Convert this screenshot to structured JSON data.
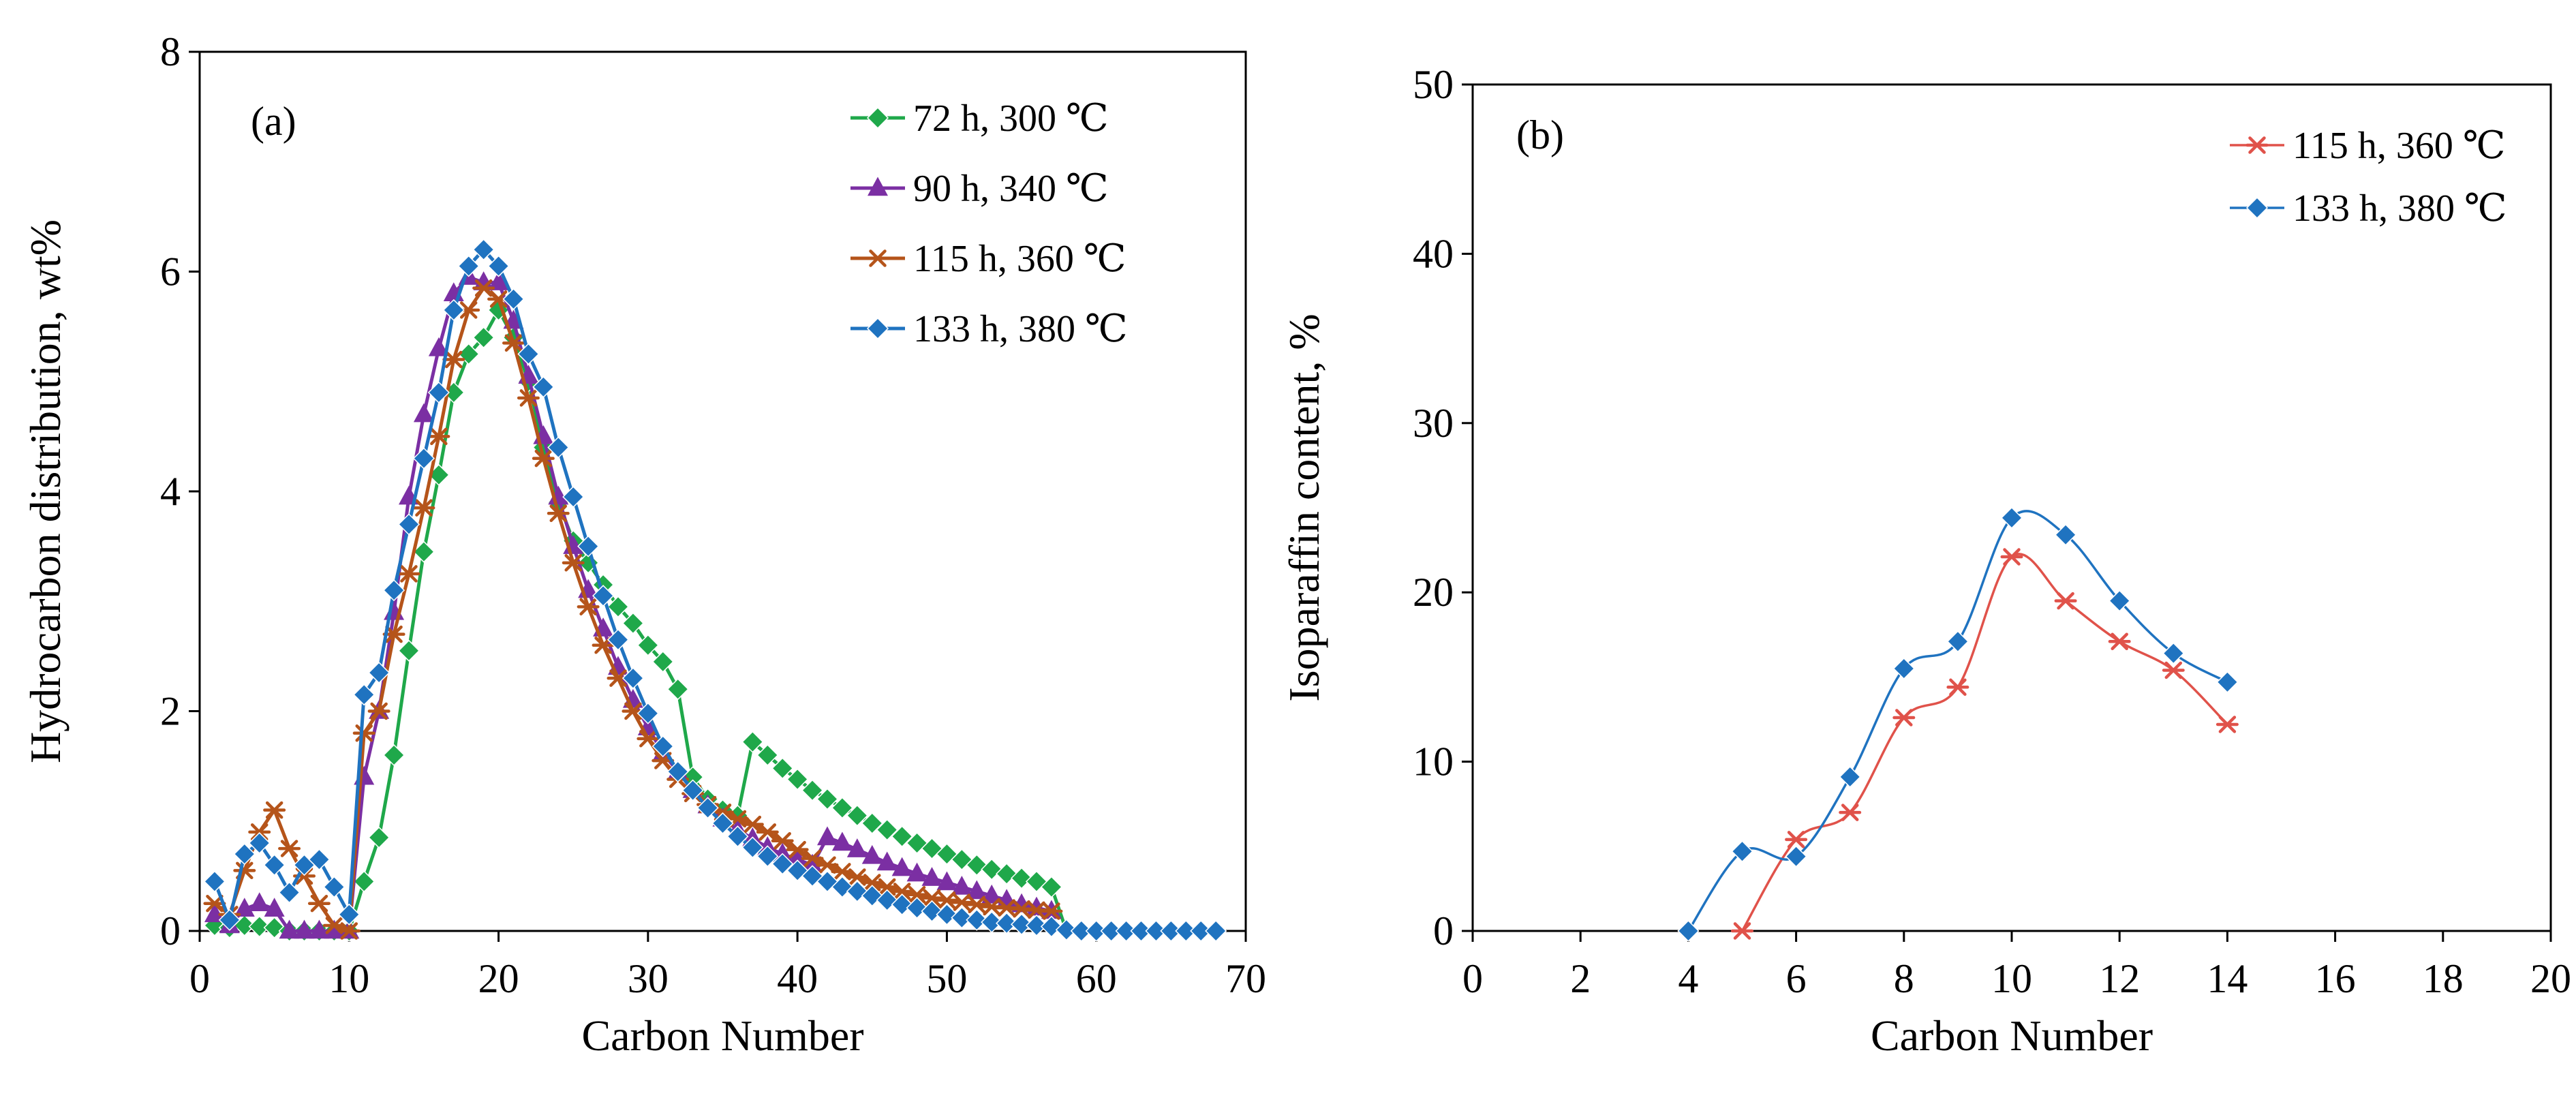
{
  "chart_data": [
    {
      "type": "line",
      "panel_label": "(a)",
      "xlabel": "Carbon Number",
      "ylabel": "Hydrocarbon distribution, wt%",
      "xlim": [
        0,
        70
      ],
      "ylim": [
        0,
        8
      ],
      "xticks": [
        "0",
        "10",
        "20",
        "30",
        "40",
        "50",
        "60",
        "70"
      ],
      "yticks": [
        "0",
        "2",
        "4",
        "6",
        "8"
      ],
      "grid": false,
      "legend_position": "top-right",
      "series": [
        {
          "name": "72 h, 300 ℃",
          "color": "#1fa84a",
          "marker": "diamond",
          "x": [
            1,
            2,
            3,
            4,
            5,
            6,
            7,
            8,
            9,
            10,
            11,
            12,
            13,
            14,
            15,
            16,
            17,
            18,
            19,
            20,
            21,
            22,
            23,
            24,
            25,
            26,
            27,
            28,
            29,
            30,
            31,
            32,
            33,
            34,
            35,
            36,
            37,
            38,
            39,
            40,
            41,
            42,
            43,
            44,
            45,
            46,
            47,
            48,
            49,
            50,
            51,
            52,
            53,
            54,
            55,
            56,
            57,
            58,
            59,
            60,
            61,
            62,
            63,
            64,
            65,
            66,
            67,
            68
          ],
          "y": [
            0.05,
            0.03,
            0.05,
            0.04,
            0.03,
            0,
            0,
            0,
            0,
            0,
            0.45,
            0.85,
            1.6,
            2.55,
            3.45,
            4.15,
            4.9,
            5.25,
            5.4,
            5.65,
            5.4,
            5.0,
            4.4,
            3.9,
            3.55,
            3.35,
            3.15,
            2.95,
            2.8,
            2.6,
            2.45,
            2.2,
            1.4,
            1.2,
            1.1,
            1.05,
            1.72,
            1.6,
            1.48,
            1.38,
            1.28,
            1.2,
            1.12,
            1.05,
            0.98,
            0.92,
            0.86,
            0.8,
            0.75,
            0.7,
            0.65,
            0.6,
            0.56,
            0.52,
            0.48,
            0.45,
            0.4,
            0,
            0,
            0,
            0,
            0,
            0,
            0,
            0,
            0,
            0,
            0
          ]
        },
        {
          "name": "90 h, 340 ℃",
          "color": "#7b2fa3",
          "marker": "triangle",
          "x": [
            1,
            2,
            3,
            4,
            5,
            6,
            7,
            8,
            9,
            10,
            11,
            12,
            13,
            14,
            15,
            16,
            17,
            18,
            19,
            20,
            21,
            22,
            23,
            24,
            25,
            26,
            27,
            28,
            29,
            30,
            31,
            32,
            33,
            34,
            35,
            36,
            37,
            38,
            39,
            40,
            41,
            42,
            43,
            44,
            45,
            46,
            47,
            48,
            49,
            50,
            51,
            52,
            53,
            54,
            55,
            56,
            57
          ],
          "y": [
            0.15,
            0.05,
            0.2,
            0.25,
            0.2,
            0,
            0,
            0,
            0,
            0,
            1.4,
            2.0,
            2.9,
            3.95,
            4.7,
            5.3,
            5.8,
            5.95,
            5.9,
            5.9,
            5.55,
            5.05,
            4.5,
            3.95,
            3.5,
            3.1,
            2.75,
            2.4,
            2.1,
            1.85,
            1.62,
            1.45,
            1.28,
            1.14,
            1.02,
            0.92,
            0.84,
            0.76,
            0.7,
            0.65,
            0.6,
            0.85,
            0.8,
            0.74,
            0.68,
            0.62,
            0.57,
            0.52,
            0.48,
            0.44,
            0.4,
            0.36,
            0.32,
            0.28,
            0.24,
            0.21,
            0.18
          ]
        },
        {
          "name": "115 h, 360 ℃",
          "color": "#b5541a",
          "marker": "asterisk",
          "x": [
            1,
            2,
            3,
            4,
            5,
            6,
            7,
            8,
            9,
            10,
            11,
            12,
            13,
            14,
            15,
            16,
            17,
            18,
            19,
            20,
            21,
            22,
            23,
            24,
            25,
            26,
            27,
            28,
            29,
            30,
            31,
            32,
            33,
            34,
            35,
            36,
            37,
            38,
            39,
            40,
            41,
            42,
            43,
            44,
            45,
            46,
            47,
            48,
            49,
            50,
            51,
            52,
            53,
            54,
            55,
            56,
            57
          ],
          "y": [
            0.25,
            0.15,
            0.55,
            0.9,
            1.1,
            0.75,
            0.5,
            0.25,
            0.05,
            0,
            1.8,
            2.0,
            2.7,
            3.25,
            3.85,
            4.5,
            5.2,
            5.65,
            5.85,
            5.75,
            5.35,
            4.85,
            4.3,
            3.8,
            3.35,
            2.95,
            2.6,
            2.3,
            2.0,
            1.75,
            1.55,
            1.38,
            1.25,
            1.15,
            1.08,
            1.02,
            0.97,
            0.9,
            0.82,
            0.74,
            0.66,
            0.6,
            0.54,
            0.49,
            0.44,
            0.4,
            0.36,
            0.33,
            0.3,
            0.28,
            0.26,
            0.24,
            0.22,
            0.21,
            0.2,
            0.19,
            0.18
          ]
        },
        {
          "name": "133 h, 380 ℃",
          "color": "#1f73c0",
          "marker": "diamond",
          "x": [
            1,
            2,
            3,
            4,
            5,
            6,
            7,
            8,
            9,
            10,
            11,
            12,
            13,
            14,
            15,
            16,
            17,
            18,
            19,
            20,
            21,
            22,
            23,
            24,
            25,
            26,
            27,
            28,
            29,
            30,
            31,
            32,
            33,
            34,
            35,
            36,
            37,
            38,
            39,
            40,
            41,
            42,
            43,
            44,
            45,
            46,
            47,
            48,
            49,
            50,
            51,
            52,
            53,
            54,
            55,
            56,
            57,
            58,
            59,
            60,
            61,
            62,
            63,
            64,
            65,
            66,
            67,
            68
          ],
          "y": [
            0.45,
            0.1,
            0.7,
            0.8,
            0.6,
            0.35,
            0.6,
            0.65,
            0.4,
            0.15,
            2.15,
            2.35,
            3.1,
            3.7,
            4.3,
            4.9,
            5.65,
            6.05,
            6.2,
            6.05,
            5.75,
            5.25,
            4.95,
            4.4,
            3.95,
            3.5,
            3.05,
            2.65,
            2.3,
            1.98,
            1.68,
            1.45,
            1.28,
            1.12,
            0.98,
            0.86,
            0.76,
            0.68,
            0.61,
            0.55,
            0.5,
            0.45,
            0.4,
            0.36,
            0.32,
            0.28,
            0.24,
            0.21,
            0.18,
            0.15,
            0.12,
            0.1,
            0.08,
            0.07,
            0.06,
            0.05,
            0.04,
            0.01,
            0,
            0,
            0,
            0,
            0,
            0,
            0,
            0,
            0,
            0
          ]
        }
      ]
    },
    {
      "type": "line",
      "panel_label": "(b)",
      "xlabel": "Carbon Number",
      "ylabel": "Isoparaffin content, %",
      "xlim": [
        0,
        20
      ],
      "ylim": [
        0,
        50
      ],
      "xticks": [
        "0",
        "2",
        "4",
        "6",
        "8",
        "10",
        "12",
        "14",
        "16",
        "18",
        "20"
      ],
      "yticks": [
        "0",
        "10",
        "20",
        "30",
        "40",
        "50"
      ],
      "grid": false,
      "legend_position": "top-right",
      "series": [
        {
          "name": "115 h, 360 ℃",
          "color": "#e0524a",
          "marker": "asterisk",
          "x": [
            5,
            6,
            7,
            8,
            9,
            10,
            11,
            12,
            13,
            14
          ],
          "y": [
            0,
            5.4,
            7.0,
            12.6,
            14.4,
            22.1,
            19.5,
            17.1,
            15.4,
            12.2
          ]
        },
        {
          "name": "133 h, 380 ℃",
          "color": "#1f73c0",
          "marker": "diamond",
          "x": [
            4,
            5,
            6,
            7,
            8,
            9,
            10,
            11,
            12,
            13,
            14
          ],
          "y": [
            0,
            4.7,
            4.4,
            9.1,
            15.5,
            17.1,
            24.4,
            23.4,
            19.5,
            16.4,
            14.7
          ]
        }
      ]
    }
  ]
}
